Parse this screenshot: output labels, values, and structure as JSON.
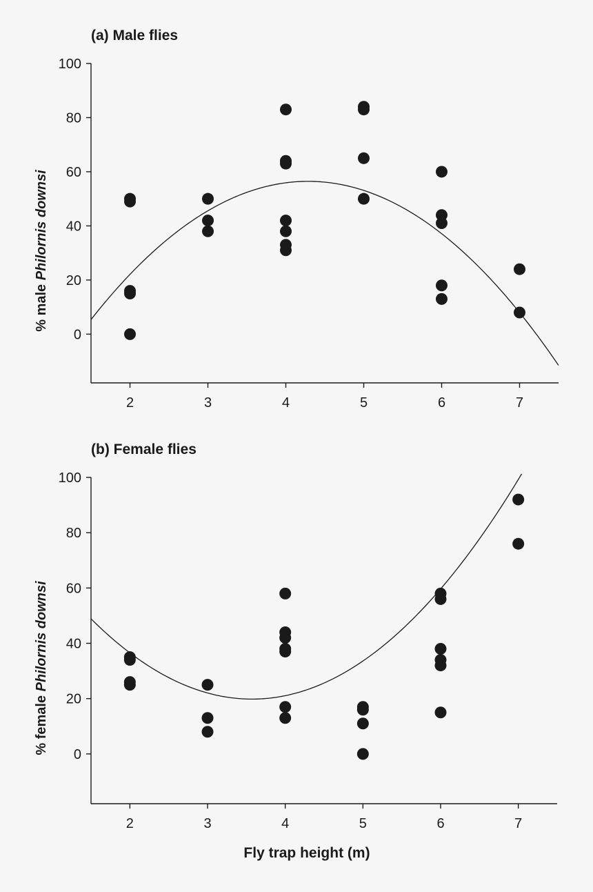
{
  "chart_data": [
    {
      "type": "scatter",
      "title": "(a) Male flies",
      "ylabel_prefix": "% male ",
      "ylabel_species": "Philornis downsi",
      "xlabel": "",
      "xlim": [
        1.5,
        7.5
      ],
      "ylim": [
        -18,
        100
      ],
      "xticks": [
        "2",
        "3",
        "4",
        "5",
        "6",
        "7"
      ],
      "yticks": [
        "0",
        "20",
        "40",
        "60",
        "80",
        "100"
      ],
      "points": [
        {
          "x": 2,
          "y": 50
        },
        {
          "x": 2,
          "y": 49
        },
        {
          "x": 2,
          "y": 16
        },
        {
          "x": 2,
          "y": 15
        },
        {
          "x": 2,
          "y": 0
        },
        {
          "x": 3,
          "y": 50
        },
        {
          "x": 3,
          "y": 42
        },
        {
          "x": 3,
          "y": 38
        },
        {
          "x": 4,
          "y": 83
        },
        {
          "x": 4,
          "y": 64
        },
        {
          "x": 4,
          "y": 63
        },
        {
          "x": 4,
          "y": 42
        },
        {
          "x": 4,
          "y": 38
        },
        {
          "x": 4,
          "y": 33
        },
        {
          "x": 4,
          "y": 31
        },
        {
          "x": 5,
          "y": 84
        },
        {
          "x": 5,
          "y": 83
        },
        {
          "x": 5,
          "y": 65
        },
        {
          "x": 5,
          "y": 50
        },
        {
          "x": 6,
          "y": 60
        },
        {
          "x": 6,
          "y": 44
        },
        {
          "x": 6,
          "y": 41
        },
        {
          "x": 6,
          "y": 18
        },
        {
          "x": 6,
          "y": 13
        },
        {
          "x": 7,
          "y": 24
        },
        {
          "x": 7,
          "y": 8
        }
      ],
      "fit": {
        "type": "quadratic",
        "a": -6.58,
        "b": 56.4,
        "c": -64.4
      }
    },
    {
      "type": "scatter",
      "title": "(b) Female flies",
      "ylabel_prefix": "% female ",
      "ylabel_species": "Philornis downsi",
      "xlabel": "Fly trap height (m)",
      "xlim": [
        1.5,
        7.5
      ],
      "ylim": [
        -18,
        100
      ],
      "xticks": [
        "2",
        "3",
        "4",
        "5",
        "6",
        "7"
      ],
      "yticks": [
        "0",
        "20",
        "40",
        "60",
        "80",
        "100"
      ],
      "points": [
        {
          "x": 2,
          "y": 35
        },
        {
          "x": 2,
          "y": 34
        },
        {
          "x": 2,
          "y": 26
        },
        {
          "x": 2,
          "y": 25
        },
        {
          "x": 3,
          "y": 25
        },
        {
          "x": 3,
          "y": 13
        },
        {
          "x": 3,
          "y": 8
        },
        {
          "x": 4,
          "y": 58
        },
        {
          "x": 4,
          "y": 44
        },
        {
          "x": 4,
          "y": 42
        },
        {
          "x": 4,
          "y": 38
        },
        {
          "x": 4,
          "y": 37
        },
        {
          "x": 4,
          "y": 17
        },
        {
          "x": 4,
          "y": 13
        },
        {
          "x": 5,
          "y": 17
        },
        {
          "x": 5,
          "y": 16
        },
        {
          "x": 5,
          "y": 11
        },
        {
          "x": 5,
          "y": 0
        },
        {
          "x": 6,
          "y": 58
        },
        {
          "x": 6,
          "y": 56
        },
        {
          "x": 6,
          "y": 38
        },
        {
          "x": 6,
          "y": 34
        },
        {
          "x": 6,
          "y": 32
        },
        {
          "x": 6,
          "y": 15
        },
        {
          "x": 7,
          "y": 92
        },
        {
          "x": 7,
          "y": 76
        }
      ],
      "fit": {
        "type": "quadratic",
        "a": 6.76,
        "b": -48.3,
        "c": 106.1
      }
    }
  ]
}
